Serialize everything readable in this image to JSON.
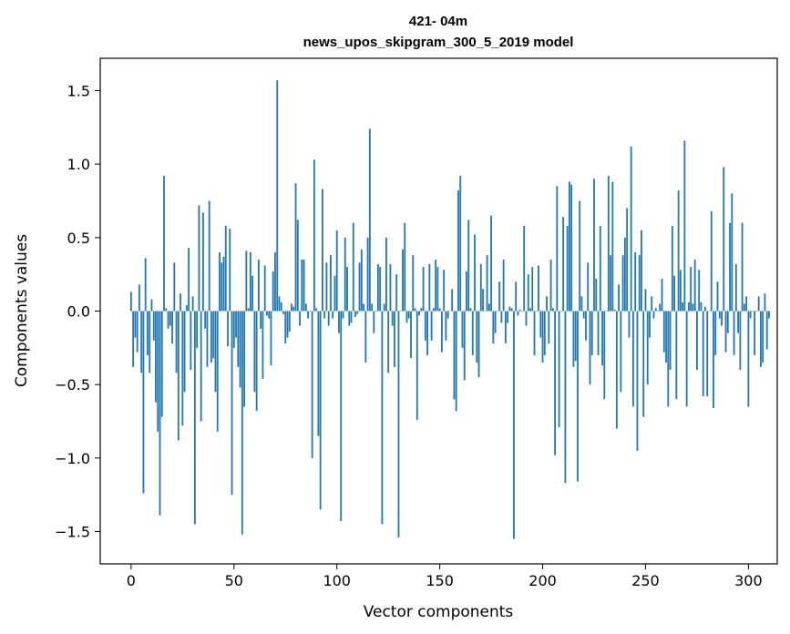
{
  "chart_data": {
    "type": "bar",
    "title_line1": "421- 04m",
    "title_line2": "news_upos_skipgram_300_5_2019 model",
    "xlabel": "Vector components",
    "ylabel": "Components values",
    "xlim": [
      -15,
      314
    ],
    "ylim": [
      -1.72,
      1.72
    ],
    "xticks": [
      0,
      50,
      100,
      150,
      200,
      250,
      300
    ],
    "yticks": [
      -1.5,
      -1.0,
      -0.5,
      0.0,
      0.5,
      1.0,
      1.5
    ],
    "ytick_labels": [
      "−1.5",
      "−1.0",
      "−0.5",
      "0.0",
      "0.5",
      "1.0",
      "1.5"
    ],
    "bar_color": "#1f77b4",
    "grid": false,
    "values": [
      0.13,
      -0.38,
      -0.18,
      -0.28,
      0.18,
      -0.42,
      -1.24,
      0.36,
      -0.3,
      -0.42,
      0.08,
      -0.2,
      -0.62,
      -0.82,
      -1.39,
      -0.72,
      0.92,
      0.02,
      -0.12,
      -0.1,
      -0.22,
      0.33,
      -0.42,
      -0.88,
      0.12,
      -0.78,
      -0.55,
      0.04,
      0.43,
      -0.4,
      0.1,
      -1.45,
      -0.25,
      0.72,
      -0.75,
      0.67,
      -0.12,
      -0.38,
      0.75,
      -0.35,
      -0.32,
      -0.55,
      -0.82,
      0.4,
      0.33,
      0.37,
      0.58,
      -0.24,
      0.56,
      -1.25,
      -0.25,
      -0.18,
      -0.38,
      -0.52,
      -1.52,
      -0.65,
      0.41,
      0.02,
      0.4,
      0.24,
      -0.55,
      -0.68,
      0.35,
      -0.12,
      -0.46,
      0.31,
      -0.03,
      -0.05,
      -0.37,
      0.27,
      0.4,
      1.57,
      0.1,
      0.06,
      -0.02,
      -0.22,
      -0.18,
      -0.14,
      0.05,
      0.03,
      0.87,
      0.62,
      -0.1,
      0.35,
      0.35,
      0.05,
      -0.05,
      0.0,
      -1.0,
      1.03,
      0.02,
      -0.85,
      -1.35,
      0.83,
      -0.05,
      0.33,
      -0.1,
      0.38,
      -0.05,
      0.24,
      0.55,
      -0.15,
      -1.43,
      -0.05,
      0.5,
      0.3,
      -0.1,
      -0.08,
      0.6,
      -0.04,
      -0.02,
      0.33,
      0.42,
      0.05,
      -0.35,
      0.5,
      1.24,
      0.05,
      -0.15,
      0.0,
      0.32,
      0.3,
      -1.45,
      0.05,
      0.5,
      -0.42,
      0.32,
      -0.1,
      -0.38,
      0.25,
      -1.54,
      0.0,
      0.42,
      0.6,
      -0.08,
      -0.05,
      -0.32,
      0.38,
      0.02,
      -0.74,
      -0.03,
      0.02,
      0.3,
      -0.2,
      -0.3,
      0.32,
      -0.2,
      0.02,
      0.35,
      0.3,
      0.02,
      -0.28,
      0.28,
      -0.2,
      -0.05,
      0.0,
      0.15,
      -0.6,
      -0.68,
      0.82,
      0.92,
      -0.25,
      -0.47,
      0.27,
      0.62,
      0.02,
      -0.3,
      0.52,
      -0.35,
      -0.45,
      0.32,
      0.15,
      0.0,
      0.38,
      0.05,
      0.65,
      -0.22,
      -0.15,
      0.0,
      0.2,
      -0.08,
      0.35,
      -0.22,
      -0.08,
      0.03,
      0.02,
      -1.55,
      0.2,
      -0.03,
      0.01,
      0.0,
      0.58,
      -0.1,
      0.25,
      0.02,
      0.3,
      -0.3,
      0.0,
      0.31,
      -0.18,
      -0.35,
      -0.3,
      0.1,
      -0.22,
      0.35,
      0.02,
      -0.98,
      0.85,
      -0.79,
      0.0,
      0.64,
      -1.17,
      0.58,
      0.88,
      0.86,
      -0.38,
      -0.34,
      -1.16,
      0.75,
      0.1,
      -0.05,
      -0.2,
      0.33,
      -0.5,
      -0.3,
      0.9,
      0.22,
      -0.3,
      0.58,
      -0.37,
      -0.6,
      0.0,
      0.92,
      0.38,
      0.88,
      0.01,
      -0.8,
      0.18,
      -0.55,
      0.38,
      0.5,
      0.7,
      -0.18,
      1.12,
      -0.65,
      0.4,
      -0.95,
      0.38,
      0.55,
      -0.72,
      0.15,
      -0.5,
      -0.18,
      0.1,
      -0.05,
      0.02,
      0.0,
      0.05,
      0.22,
      -0.28,
      -0.35,
      -0.65,
      -0.4,
      0.58,
      0.24,
      -0.6,
      0.82,
      0.28,
      0.06,
      1.16,
      -0.65,
      0.06,
      0.3,
      0.05,
      0.35,
      -0.4,
      0.28,
      0.06,
      -0.58,
      0.03,
      -0.58,
      0.0,
      0.68,
      -0.66,
      -0.3,
      0.2,
      -0.05,
      -0.1,
      0.98,
      -0.28,
      -0.15,
      0.6,
      0.8,
      -0.3,
      0.32,
      -0.15,
      -0.4,
      0.6,
      0.05,
      0.1,
      -0.65,
      -0.05,
      0.0,
      -0.3,
      0.0,
      0.1,
      -0.38,
      -0.35,
      0.12,
      -0.26,
      -0.05
    ]
  }
}
